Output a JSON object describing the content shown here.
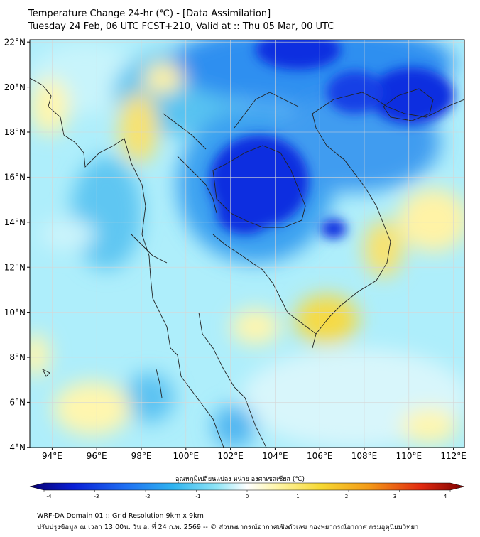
{
  "header": {
    "title": "Temperature Change 24-hr (℃) - [Data Assimilation]",
    "subtitle": "Tuesday 24 Feb, 06 UTC FCST+210, Valid at :: Thu 05 Mar, 00 UTC"
  },
  "map": {
    "lon_range": [
      93,
      112.5
    ],
    "lat_range": [
      4,
      22.2
    ],
    "lon_ticks": [
      "94°E",
      "96°E",
      "98°E",
      "100°E",
      "102°E",
      "104°E",
      "106°E",
      "108°E",
      "110°E",
      "112°E"
    ],
    "lat_ticks": [
      "22°N",
      "20°N",
      "18°N",
      "16°N",
      "14°N",
      "12°N",
      "10°N",
      "8°N",
      "6°N",
      "4°N"
    ],
    "gridlines": true,
    "colors": {
      "strong_cooling": "#0a2ee0",
      "moderate_cooling": "#3aa7ef",
      "slight_cooling": "#a9eefa",
      "slight_warming": "#fff6a8",
      "moderate_warming": "#f6d832",
      "coastline": "#222222"
    }
  },
  "colorbar": {
    "title": "อุณหภูมิเปลี่ยนแปลง หน่วย องศาเซลเซียส (℃)",
    "ticks": [
      "-4",
      "-3",
      "-2",
      "-1",
      "0",
      "1",
      "2",
      "3",
      "4"
    ],
    "range": [
      -4,
      4
    ]
  },
  "footer": {
    "line1": "WRF-DA Domain 01 :: Grid Resolution 9km x 9km",
    "line2": "ปรับปรุงข้อมูล ณ เวลา 13:00น. วัน อ. ที่ 24 ก.พ. 2569 -- © ส่วนพยากรณ์อากาศเชิงตัวเลข กองพยากรณ์อากาศ กรมอุตุนิยมวิทยา"
  }
}
